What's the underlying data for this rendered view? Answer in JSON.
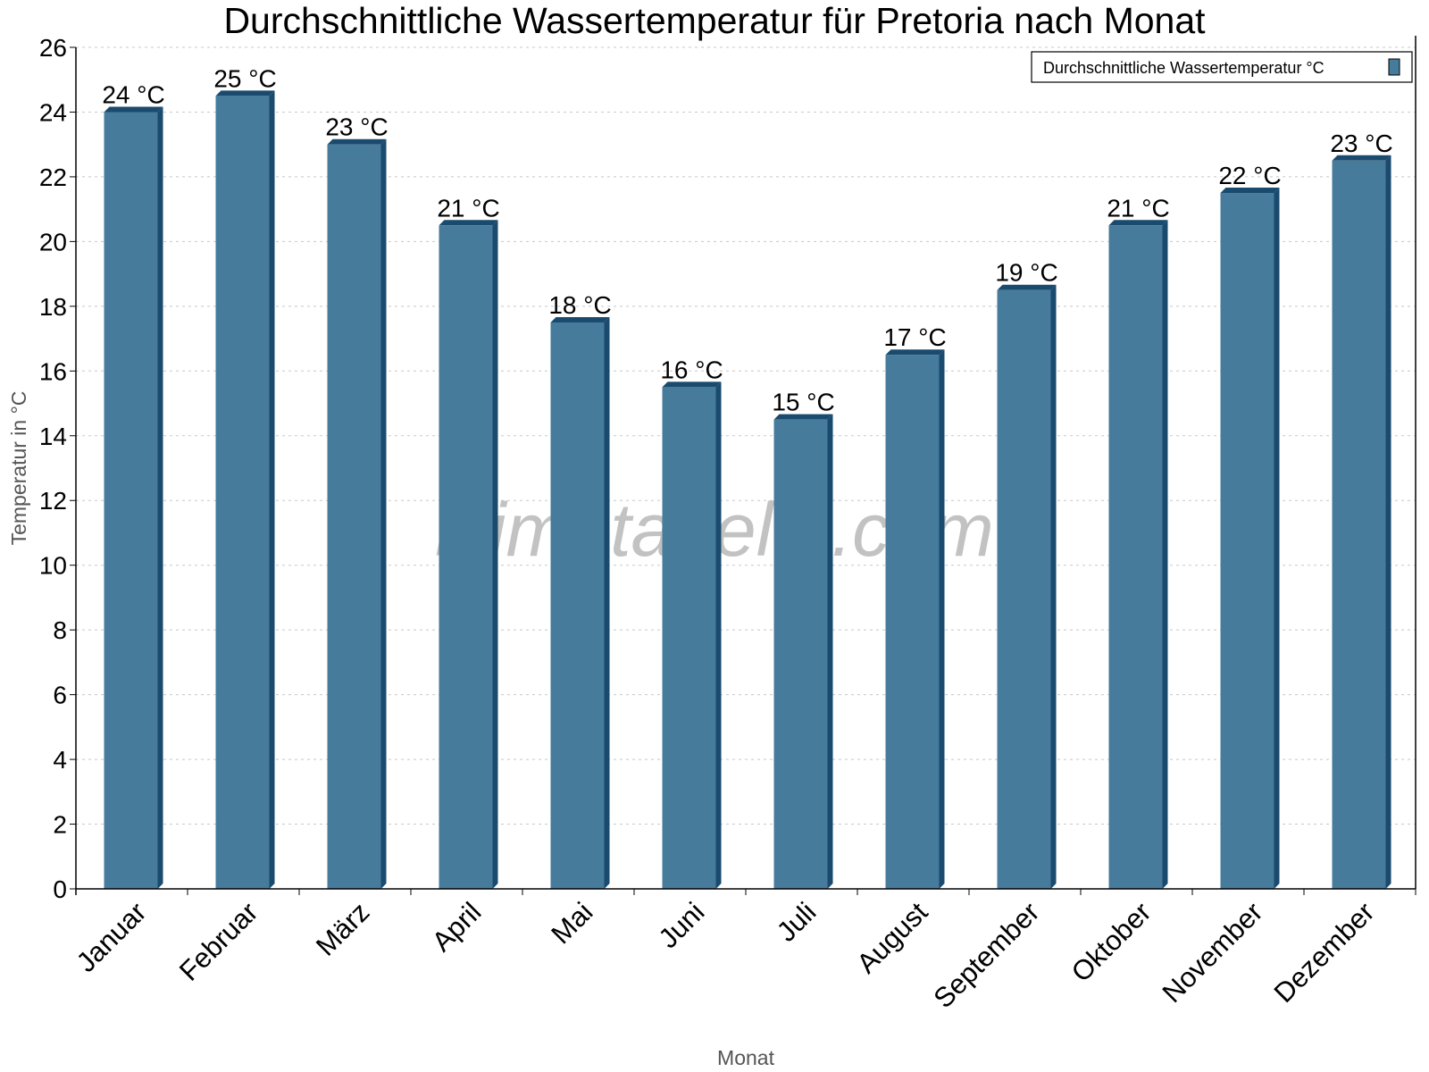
{
  "chart_data": {
    "type": "bar",
    "title": "Durchschnittliche Wassertemperatur für Pretoria nach Monat",
    "xlabel": "Monat",
    "ylabel": "Temperatur in °C",
    "ylim": [
      0,
      26
    ],
    "yticks": [
      0,
      2,
      4,
      6,
      8,
      10,
      12,
      14,
      16,
      18,
      20,
      22,
      24,
      26
    ],
    "grid": true,
    "legend_position": "top-right",
    "categories": [
      "Januar",
      "Februar",
      "März",
      "April",
      "Mai",
      "Juni",
      "Juli",
      "August",
      "September",
      "Oktober",
      "November",
      "Dezember"
    ],
    "series": [
      {
        "name": "Durchschnittliche Wassertemperatur °C",
        "color": "#467b9c",
        "values": [
          24,
          24.5,
          23,
          20.5,
          17.5,
          15.5,
          14.5,
          16.5,
          18.5,
          20.5,
          21.5,
          22.5
        ],
        "data_labels": [
          "24 °C",
          "25 °C",
          "23 °C",
          "21 °C",
          "18 °C",
          "16 °C",
          "15 °C",
          "17 °C",
          "19 °C",
          "21 °C",
          "22 °C",
          "23 °C"
        ]
      }
    ],
    "watermark": "klimatabelle.com"
  }
}
